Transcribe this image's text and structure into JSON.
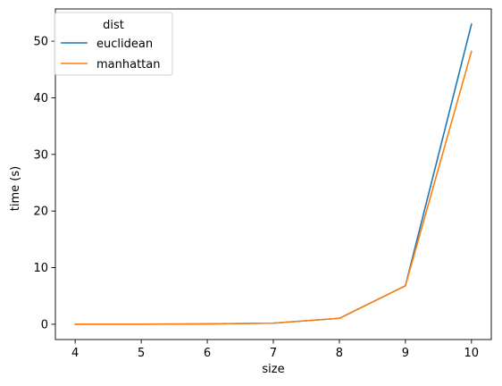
{
  "chart_data": {
    "type": "line",
    "title": "",
    "xlabel": "size",
    "ylabel": "time (s)",
    "x": [
      4,
      5,
      6,
      7,
      8,
      9,
      10
    ],
    "xticks": [
      "4",
      "5",
      "6",
      "7",
      "8",
      "9",
      "10"
    ],
    "yticks": [
      "0",
      "10",
      "20",
      "30",
      "40",
      "50"
    ],
    "xlim": [
      3.7,
      10.3
    ],
    "ylim": [
      -2.7,
      55.7
    ],
    "grid": false,
    "legend": {
      "title": "dist",
      "position": "top-left"
    },
    "series": [
      {
        "name": "euclidean",
        "color": "#1f77b4",
        "values": [
          0.01,
          0.02,
          0.06,
          0.2,
          1.05,
          6.8,
          53.0
        ]
      },
      {
        "name": "manhattan",
        "color": "#ff7f0e",
        "values": [
          0.01,
          0.02,
          0.06,
          0.2,
          1.05,
          6.8,
          48.2
        ]
      }
    ]
  }
}
